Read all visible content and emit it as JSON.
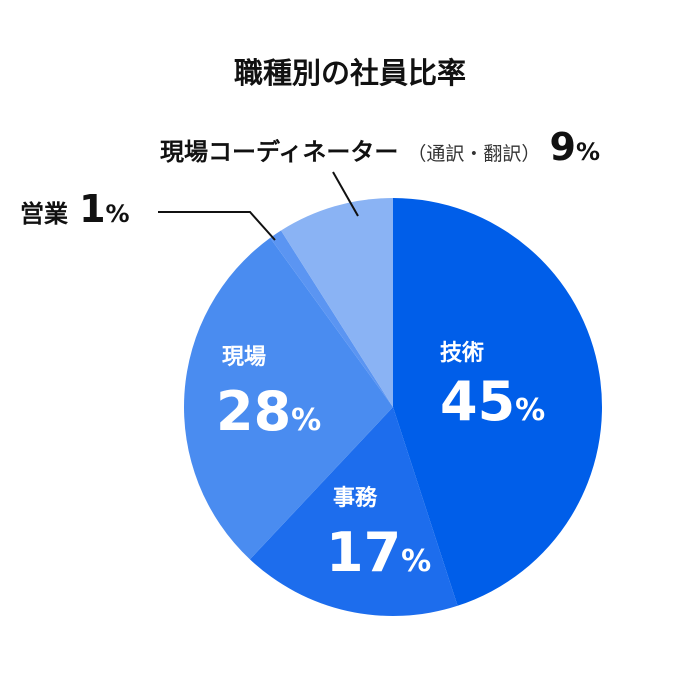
{
  "chart_data": {
    "type": "pie",
    "title": "職種別の社員比率",
    "start_angle": "12 o'clock, clockwise",
    "slices": [
      {
        "label": "技術",
        "value": 45,
        "display": "45",
        "unit": "%",
        "color": "#005ee9",
        "label_position": "inside"
      },
      {
        "label": "事務",
        "value": 17,
        "display": "17",
        "unit": "%",
        "color": "#1d6ded",
        "label_position": "inside"
      },
      {
        "label": "現場",
        "value": 28,
        "display": "28",
        "unit": "%",
        "color": "#4a8cf0",
        "label_position": "inside"
      },
      {
        "label": "営業",
        "value": 1,
        "display": "1",
        "unit": "%",
        "color": "#5b95f2",
        "label_position": "outside-left"
      },
      {
        "label": "現場コーディネーター",
        "note": "（通訳・翻訳）",
        "value": 9,
        "display": "9",
        "unit": "%",
        "color": "#8ab3f4",
        "label_position": "outside-top"
      }
    ]
  }
}
